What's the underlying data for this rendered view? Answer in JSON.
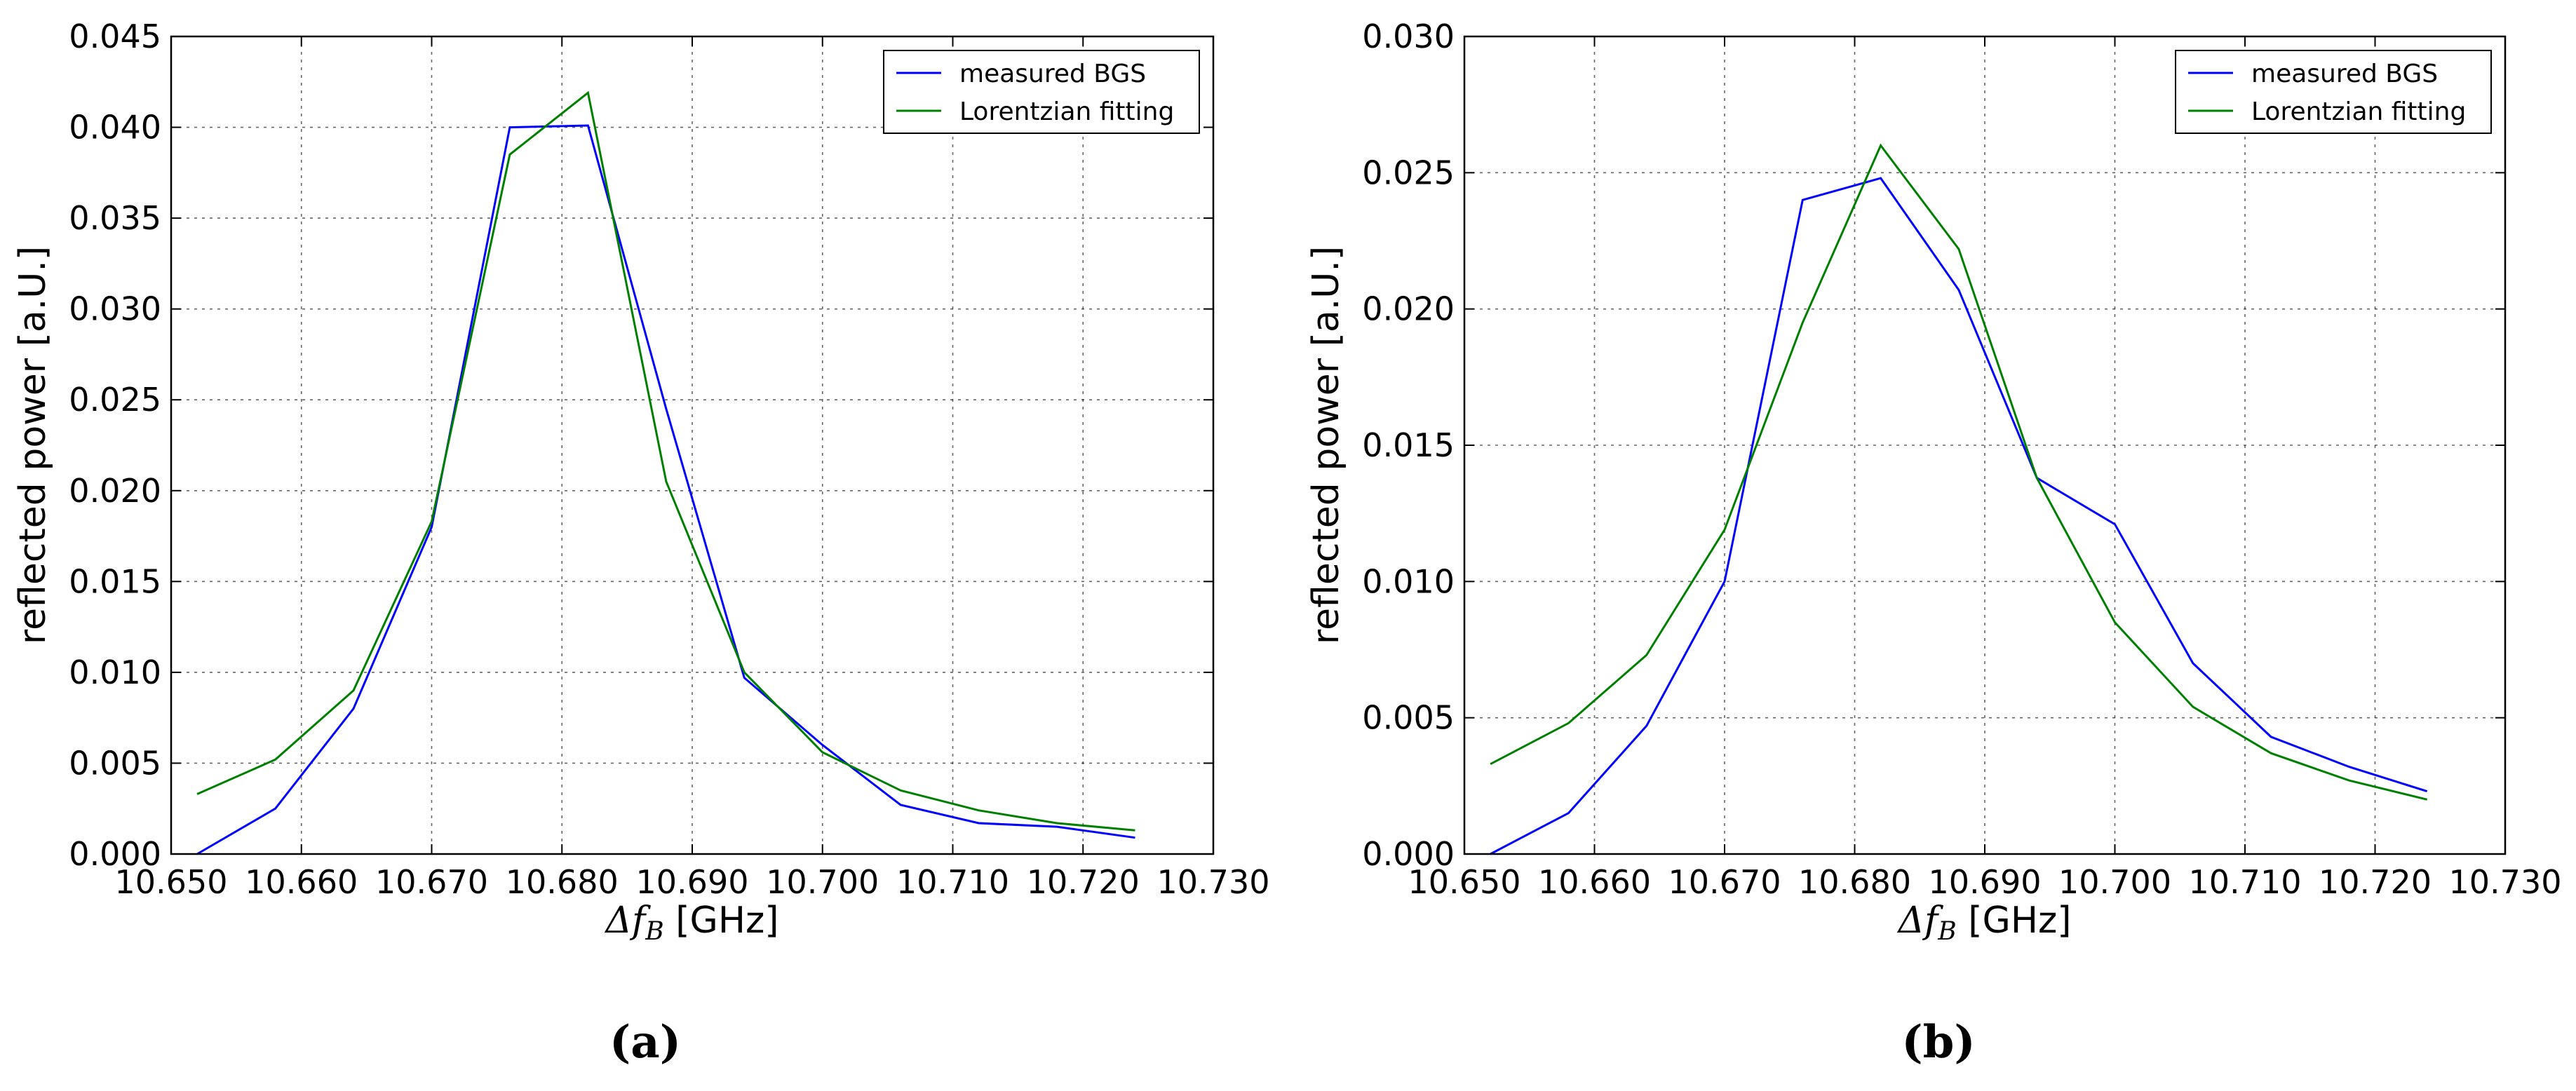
{
  "chart_data": [
    {
      "type": "line",
      "panel_label": "(a)",
      "xlabel_symbol": "Δf",
      "xlabel_subscript": "B",
      "xlabel_unit": "[GHz]",
      "ylabel": "reflected power [a.U.]",
      "xlim": [
        10.65,
        10.73
      ],
      "ylim": [
        0,
        0.045
      ],
      "xticks": [
        "10.650",
        "10.660",
        "10.670",
        "10.680",
        "10.690",
        "10.700",
        "10.710",
        "10.720",
        "10.730"
      ],
      "yticks": [
        "0.000",
        "0.005",
        "0.010",
        "0.015",
        "0.020",
        "0.025",
        "0.030",
        "0.035",
        "0.040",
        "0.045"
      ],
      "grid": true,
      "legend_position": "top-right",
      "series": [
        {
          "name": "measured BGS",
          "color": "#0000ff",
          "x": [
            10.652,
            10.658,
            10.664,
            10.67,
            10.676,
            10.682,
            10.688,
            10.694,
            10.7,
            10.706,
            10.712,
            10.718,
            10.724
          ],
          "y": [
            0.0,
            0.0025,
            0.008,
            0.018,
            0.04,
            0.0401,
            0.0245,
            0.0097,
            0.006,
            0.0027,
            0.0017,
            0.0015,
            0.0009
          ]
        },
        {
          "name": "Lorentzian fitting",
          "color": "#008000",
          "x": [
            10.652,
            10.658,
            10.664,
            10.67,
            10.676,
            10.682,
            10.688,
            10.694,
            10.7,
            10.706,
            10.712,
            10.718,
            10.724
          ],
          "y": [
            0.0033,
            0.0052,
            0.009,
            0.0183,
            0.0385,
            0.0419,
            0.0205,
            0.01,
            0.0056,
            0.0035,
            0.0024,
            0.0017,
            0.0013
          ]
        }
      ]
    },
    {
      "type": "line",
      "panel_label": "(b)",
      "xlabel_symbol": "Δf",
      "xlabel_subscript": "B",
      "xlabel_unit": "[GHz]",
      "ylabel": "reflected power [a.U.]",
      "xlim": [
        10.65,
        10.73
      ],
      "ylim": [
        0,
        0.03
      ],
      "xticks": [
        "10.650",
        "10.660",
        "10.670",
        "10.680",
        "10.690",
        "10.700",
        "10.710",
        "10.720",
        "10.730"
      ],
      "yticks": [
        "0.000",
        "0.005",
        "0.010",
        "0.015",
        "0.020",
        "0.025",
        "0.030"
      ],
      "grid": true,
      "legend_position": "top-right",
      "series": [
        {
          "name": "measured BGS",
          "color": "#0000ff",
          "x": [
            10.652,
            10.658,
            10.664,
            10.67,
            10.676,
            10.682,
            10.688,
            10.694,
            10.7,
            10.706,
            10.712,
            10.718,
            10.724
          ],
          "y": [
            0.0,
            0.0015,
            0.0047,
            0.01,
            0.024,
            0.0248,
            0.0207,
            0.0138,
            0.0121,
            0.007,
            0.0043,
            0.0032,
            0.0023
          ]
        },
        {
          "name": "Lorentzian fitting",
          "color": "#008000",
          "x": [
            10.652,
            10.658,
            10.664,
            10.67,
            10.676,
            10.682,
            10.688,
            10.694,
            10.7,
            10.706,
            10.712,
            10.718,
            10.724
          ],
          "y": [
            0.0033,
            0.0048,
            0.0073,
            0.0119,
            0.0195,
            0.026,
            0.0222,
            0.0138,
            0.0085,
            0.0054,
            0.0037,
            0.0027,
            0.002
          ]
        }
      ]
    }
  ]
}
